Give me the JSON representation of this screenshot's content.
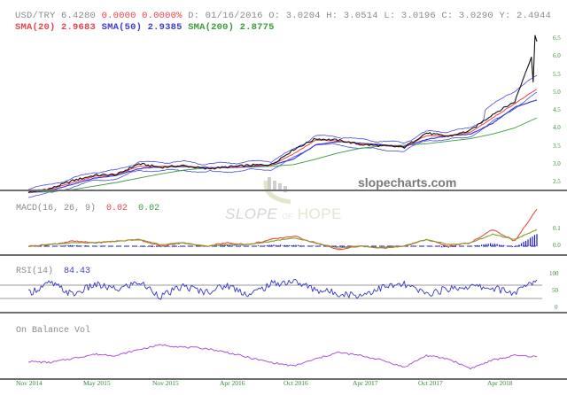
{
  "header": {
    "symbol": "USD/TRY",
    "last": "6.4280",
    "change": "0.0000",
    "change_pct": "0.0000%",
    "date_label": "D:",
    "date": "01/16/2016",
    "open_label": "O:",
    "open": "3.0204",
    "high_label": "H:",
    "high": "3.0514",
    "low_label": "L:",
    "low": "3.0196",
    "close_label": "C:",
    "close": "3.0290",
    "y_label": "Y:",
    "y": "2.4944",
    "sma20_label": "SMA(20)",
    "sma20": "2.9683",
    "sma50_label": "SMA(50)",
    "sma50": "2.9385",
    "sma200_label": "SMA(200)",
    "sma200": "2.8775"
  },
  "macd": {
    "label": "MACD(16, 26, 9)",
    "value1": "0.02",
    "value2": "0.02"
  },
  "rsi": {
    "label": "RSI(14)",
    "value": "84.43"
  },
  "obv": {
    "label": "On Balance Vol"
  },
  "watermark": {
    "site": "slopecharts.com",
    "slope": "SLOPE",
    "of": "OF",
    "hope": "HOPE"
  },
  "colors": {
    "price": "#111111",
    "sma20": "#e8434a",
    "sma50": "#3b3bd0",
    "sma200": "#3a9a3a",
    "bollinger": "#4a4ae0",
    "macd_line": "#d9573a",
    "macd_signal": "#8a9a2a",
    "macd_hist": "#1a1acc",
    "rsi": "#3535c8",
    "obv": "#a855d8",
    "axis_text": "#3c8c3c"
  },
  "chart_data": [
    {
      "type": "line",
      "title": "USD/TRY",
      "panel": "price",
      "xlabel": "",
      "ylabel": "",
      "ylim": [
        2.3,
        6.7
      ],
      "y_ticks": [
        "6.5",
        "6.0",
        "5.5",
        "5.0",
        "4.5",
        "4.0",
        "3.5",
        "3.0",
        "2.5"
      ],
      "x_ticks": [
        "Nov 2014",
        "May 2015",
        "Nov 2015",
        "Apr 2016",
        "Oct 2016",
        "Apr 2017",
        "Oct 2017",
        "Apr 2018"
      ],
      "x": [
        "Nov 2014",
        "Jan 2015",
        "Mar 2015",
        "May 2015",
        "Jul 2015",
        "Sep 2015",
        "Nov 2015",
        "Jan 2016",
        "Mar 2016",
        "May 2016",
        "Jul 2016",
        "Sep 2016",
        "Nov 2016",
        "Jan 2017",
        "Mar 2017",
        "May 2017",
        "Jul 2017",
        "Sep 2017",
        "Nov 2017",
        "Jan 2018",
        "Mar 2018",
        "May 2018",
        "Jul 2018",
        "Aug 2018"
      ],
      "series": [
        {
          "name": "Price",
          "values": [
            2.23,
            2.33,
            2.55,
            2.7,
            2.72,
            3.02,
            2.92,
            2.97,
            2.88,
            2.93,
            2.98,
            3.0,
            3.42,
            3.72,
            3.68,
            3.56,
            3.52,
            3.48,
            3.88,
            3.78,
            3.95,
            4.4,
            4.75,
            6.43
          ]
        },
        {
          "name": "SMA(20)",
          "values": [
            2.23,
            2.31,
            2.5,
            2.67,
            2.72,
            2.95,
            2.94,
            2.96,
            2.9,
            2.92,
            2.96,
            2.99,
            3.3,
            3.68,
            3.66,
            3.58,
            3.53,
            3.49,
            3.8,
            3.8,
            3.9,
            4.3,
            4.7,
            5.1
          ]
        },
        {
          "name": "SMA(50)",
          "values": [
            2.22,
            2.28,
            2.45,
            2.62,
            2.7,
            2.88,
            2.94,
            2.94,
            2.92,
            2.91,
            2.94,
            2.98,
            3.15,
            3.55,
            3.64,
            3.6,
            3.55,
            3.5,
            3.7,
            3.8,
            3.85,
            4.15,
            4.6,
            4.8
          ]
        },
        {
          "name": "SMA(200)",
          "values": [
            2.22,
            2.24,
            2.3,
            2.4,
            2.5,
            2.62,
            2.74,
            2.84,
            2.9,
            2.92,
            2.93,
            2.95,
            3.0,
            3.15,
            3.32,
            3.45,
            3.52,
            3.54,
            3.58,
            3.65,
            3.72,
            3.85,
            4.02,
            4.3
          ]
        }
      ],
      "annotations": [
        "SMA(20) 2.9683",
        "SMA(50) 2.9385",
        "SMA(200) 2.8775",
        "slopecharts.com"
      ]
    },
    {
      "type": "line",
      "title": "MACD(16, 26, 9)",
      "panel": "macd",
      "ylim": [
        -0.04,
        0.25
      ],
      "y_ticks": [
        "0.1",
        "0.0"
      ],
      "series": [
        {
          "name": "MACD",
          "values": [
            0.0,
            0.01,
            0.03,
            0.02,
            0.03,
            0.04,
            0.0,
            0.02,
            0.0,
            0.02,
            0.01,
            0.04,
            0.06,
            0.02,
            -0.02,
            0.0,
            -0.01,
            0.0,
            0.04,
            0.0,
            0.02,
            0.1,
            0.03,
            0.22
          ]
        },
        {
          "name": "Signal",
          "values": [
            0.0,
            0.01,
            0.02,
            0.02,
            0.03,
            0.04,
            0.01,
            0.02,
            0.0,
            0.01,
            0.01,
            0.03,
            0.05,
            0.02,
            -0.01,
            0.0,
            -0.01,
            0.0,
            0.04,
            0.01,
            0.02,
            0.07,
            0.04,
            0.1
          ]
        }
      ],
      "latest_values": {
        "macd": 0.02,
        "signal": 0.02
      }
    },
    {
      "type": "line",
      "title": "RSI(14)",
      "panel": "rsi",
      "ylim": [
        0,
        100
      ],
      "y_ticks": [
        "100",
        "50",
        "0"
      ],
      "gridlines": [
        70,
        30
      ],
      "series": [
        {
          "name": "RSI(14)",
          "values": [
            45,
            75,
            40,
            70,
            55,
            78,
            35,
            65,
            48,
            68,
            40,
            72,
            80,
            55,
            45,
            38,
            62,
            70,
            42,
            58,
            65,
            60,
            45,
            84.43
          ]
        }
      ]
    },
    {
      "type": "line",
      "title": "On Balance Vol",
      "panel": "obv",
      "series": [
        {
          "name": "OBV",
          "values": [
            40,
            38,
            45,
            52,
            50,
            60,
            68,
            64,
            62,
            55,
            46,
            38,
            32,
            44,
            55,
            50,
            42,
            30,
            50,
            44,
            28,
            42,
            50,
            48
          ]
        }
      ]
    }
  ]
}
